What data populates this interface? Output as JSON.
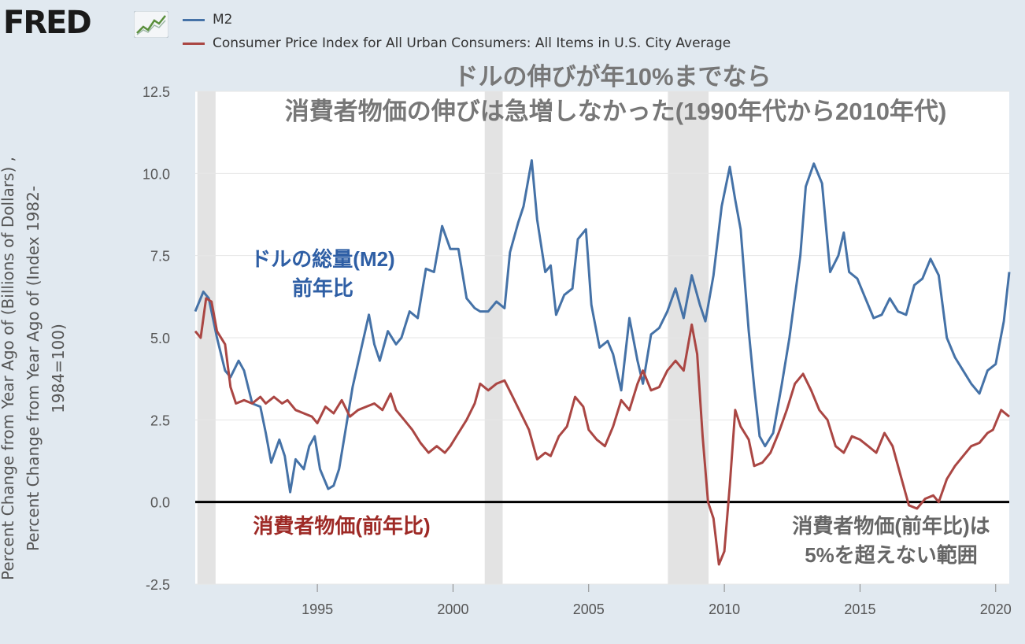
{
  "brand": {
    "logo_text": "FRED",
    "logo_icon": "chart-line-icon"
  },
  "legend": [
    {
      "name": "M2",
      "color": "#4572a7"
    },
    {
      "name": "Consumer Price Index for All Urban Consumers: All Items in U.S. City Average",
      "color": "#aa4643"
    }
  ],
  "y_axis_label": [
    "Percent Change from Year Ago of (Billions of Dollars) ,",
    "Percent Change from Year Ago of (Index 1982-",
    "1984=100)"
  ],
  "annotations": {
    "title_line1": "ドルの伸びが年10%までなら",
    "title_line2": "消費者物価の伸びは急増しなかった(1990年代から2010年代)",
    "m2_line1": "ドルの総量(M2)",
    "m2_line2": "前年比",
    "cpi_label": "消費者物価(前年比)",
    "cpi_note_line1": "消費者物価(前年比)は",
    "cpi_note_line2": "5%を超えない範囲"
  },
  "chart_data": {
    "type": "line",
    "xlim": [
      1990.5,
      2020.5
    ],
    "ylim": [
      -2.5,
      12.5
    ],
    "y_ticks": [
      "12.5",
      "10.0",
      "7.5",
      "5.0",
      "2.5",
      "0.0",
      "-2.5"
    ],
    "x_ticks": [
      "1995",
      "2000",
      "2005",
      "2010",
      "2015",
      "2020"
    ],
    "recessions": [
      [
        1990.58,
        1991.25
      ],
      [
        2001.17,
        2001.83
      ],
      [
        2007.92,
        2009.42
      ]
    ],
    "series": [
      {
        "name": "M2",
        "color": "#4572a7",
        "points": [
          [
            1990.5,
            5.8
          ],
          [
            1990.8,
            6.4
          ],
          [
            1991.0,
            6.2
          ],
          [
            1991.3,
            5.0
          ],
          [
            1991.6,
            4.0
          ],
          [
            1991.8,
            3.8
          ],
          [
            1992.1,
            4.3
          ],
          [
            1992.3,
            4.0
          ],
          [
            1992.6,
            3.0
          ],
          [
            1992.9,
            2.9
          ],
          [
            1993.1,
            2.1
          ],
          [
            1993.3,
            1.2
          ],
          [
            1993.6,
            1.9
          ],
          [
            1993.8,
            1.4
          ],
          [
            1994.0,
            0.3
          ],
          [
            1994.2,
            1.3
          ],
          [
            1994.5,
            1.0
          ],
          [
            1994.7,
            1.7
          ],
          [
            1994.9,
            2.0
          ],
          [
            1995.1,
            1.0
          ],
          [
            1995.4,
            0.4
          ],
          [
            1995.6,
            0.5
          ],
          [
            1995.8,
            1.0
          ],
          [
            1996.0,
            2.0
          ],
          [
            1996.3,
            3.5
          ],
          [
            1996.6,
            4.6
          ],
          [
            1996.9,
            5.7
          ],
          [
            1997.1,
            4.8
          ],
          [
            1997.3,
            4.3
          ],
          [
            1997.6,
            5.2
          ],
          [
            1997.9,
            4.8
          ],
          [
            1998.1,
            5.0
          ],
          [
            1998.4,
            5.8
          ],
          [
            1998.7,
            5.6
          ],
          [
            1999.0,
            7.1
          ],
          [
            1999.3,
            7.0
          ],
          [
            1999.6,
            8.4
          ],
          [
            1999.9,
            7.7
          ],
          [
            2000.2,
            7.7
          ],
          [
            2000.5,
            6.2
          ],
          [
            2000.8,
            5.9
          ],
          [
            2001.0,
            5.8
          ],
          [
            2001.3,
            5.8
          ],
          [
            2001.6,
            6.1
          ],
          [
            2001.9,
            5.9
          ],
          [
            2002.1,
            7.6
          ],
          [
            2002.4,
            8.5
          ],
          [
            2002.6,
            9.0
          ],
          [
            2002.9,
            10.4
          ],
          [
            2003.1,
            8.6
          ],
          [
            2003.4,
            7.0
          ],
          [
            2003.6,
            7.2
          ],
          [
            2003.8,
            5.7
          ],
          [
            2004.1,
            6.3
          ],
          [
            2004.4,
            6.5
          ],
          [
            2004.6,
            8.0
          ],
          [
            2004.9,
            8.3
          ],
          [
            2005.1,
            6.0
          ],
          [
            2005.4,
            4.7
          ],
          [
            2005.7,
            4.9
          ],
          [
            2005.9,
            4.5
          ],
          [
            2006.2,
            3.4
          ],
          [
            2006.5,
            5.6
          ],
          [
            2006.8,
            4.3
          ],
          [
            2007.0,
            3.6
          ],
          [
            2007.3,
            5.1
          ],
          [
            2007.6,
            5.3
          ],
          [
            2007.9,
            5.8
          ],
          [
            2008.2,
            6.5
          ],
          [
            2008.5,
            5.6
          ],
          [
            2008.8,
            6.9
          ],
          [
            2009.1,
            6.0
          ],
          [
            2009.3,
            5.5
          ],
          [
            2009.6,
            6.9
          ],
          [
            2009.9,
            9.0
          ],
          [
            2010.2,
            10.2
          ],
          [
            2010.4,
            9.2
          ],
          [
            2010.6,
            8.3
          ],
          [
            2010.9,
            5.2
          ],
          [
            2011.1,
            3.5
          ],
          [
            2011.3,
            2.0
          ],
          [
            2011.5,
            1.7
          ],
          [
            2011.8,
            2.1
          ],
          [
            2012.1,
            3.5
          ],
          [
            2012.4,
            5.0
          ],
          [
            2012.8,
            7.5
          ],
          [
            2013.0,
            9.6
          ],
          [
            2013.3,
            10.3
          ],
          [
            2013.6,
            9.7
          ],
          [
            2013.9,
            7.0
          ],
          [
            2014.2,
            7.5
          ],
          [
            2014.4,
            8.2
          ],
          [
            2014.6,
            7.0
          ],
          [
            2014.9,
            6.8
          ],
          [
            2015.2,
            6.2
          ],
          [
            2015.5,
            5.6
          ],
          [
            2015.8,
            5.7
          ],
          [
            2016.1,
            6.2
          ],
          [
            2016.4,
            5.8
          ],
          [
            2016.7,
            5.7
          ],
          [
            2017.0,
            6.6
          ],
          [
            2017.3,
            6.8
          ],
          [
            2017.6,
            7.4
          ],
          [
            2017.9,
            6.9
          ],
          [
            2018.2,
            5.0
          ],
          [
            2018.5,
            4.4
          ],
          [
            2018.8,
            4.0
          ],
          [
            2019.1,
            3.6
          ],
          [
            2019.4,
            3.3
          ],
          [
            2019.7,
            4.0
          ],
          [
            2020.0,
            4.2
          ],
          [
            2020.3,
            5.5
          ],
          [
            2020.5,
            7.0
          ]
        ]
      },
      {
        "name": "Consumer Price Index for All Urban Consumers: All Items in U.S. City Average",
        "color": "#aa4643",
        "points": [
          [
            1990.5,
            5.2
          ],
          [
            1990.7,
            5.0
          ],
          [
            1990.9,
            6.2
          ],
          [
            1991.1,
            6.1
          ],
          [
            1991.3,
            5.2
          ],
          [
            1991.6,
            4.8
          ],
          [
            1991.8,
            3.5
          ],
          [
            1992.0,
            3.0
          ],
          [
            1992.3,
            3.1
          ],
          [
            1992.6,
            3.0
          ],
          [
            1992.9,
            3.2
          ],
          [
            1993.1,
            3.0
          ],
          [
            1993.4,
            3.2
          ],
          [
            1993.7,
            3.0
          ],
          [
            1993.9,
            3.1
          ],
          [
            1994.2,
            2.8
          ],
          [
            1994.5,
            2.7
          ],
          [
            1994.8,
            2.6
          ],
          [
            1995.0,
            2.4
          ],
          [
            1995.3,
            2.9
          ],
          [
            1995.6,
            2.7
          ],
          [
            1995.9,
            3.1
          ],
          [
            1996.2,
            2.6
          ],
          [
            1996.5,
            2.8
          ],
          [
            1996.8,
            2.9
          ],
          [
            1997.1,
            3.0
          ],
          [
            1997.4,
            2.8
          ],
          [
            1997.7,
            3.3
          ],
          [
            1997.9,
            2.8
          ],
          [
            1998.2,
            2.5
          ],
          [
            1998.5,
            2.2
          ],
          [
            1998.8,
            1.8
          ],
          [
            1999.1,
            1.5
          ],
          [
            1999.4,
            1.7
          ],
          [
            1999.7,
            1.5
          ],
          [
            1999.9,
            1.7
          ],
          [
            2000.2,
            2.1
          ],
          [
            2000.5,
            2.5
          ],
          [
            2000.8,
            3.0
          ],
          [
            2001.0,
            3.6
          ],
          [
            2001.3,
            3.4
          ],
          [
            2001.6,
            3.6
          ],
          [
            2001.9,
            3.7
          ],
          [
            2002.2,
            3.2
          ],
          [
            2002.5,
            2.7
          ],
          [
            2002.8,
            2.2
          ],
          [
            2003.1,
            1.3
          ],
          [
            2003.4,
            1.5
          ],
          [
            2003.6,
            1.4
          ],
          [
            2003.9,
            2.0
          ],
          [
            2004.2,
            2.3
          ],
          [
            2004.5,
            3.2
          ],
          [
            2004.8,
            2.9
          ],
          [
            2005.0,
            2.2
          ],
          [
            2005.3,
            1.9
          ],
          [
            2005.6,
            1.7
          ],
          [
            2005.9,
            2.3
          ],
          [
            2006.2,
            3.1
          ],
          [
            2006.5,
            2.8
          ],
          [
            2006.8,
            3.6
          ],
          [
            2007.0,
            4.0
          ],
          [
            2007.3,
            3.4
          ],
          [
            2007.6,
            3.5
          ],
          [
            2007.9,
            4.0
          ],
          [
            2008.2,
            4.3
          ],
          [
            2008.5,
            4.0
          ],
          [
            2008.8,
            5.4
          ],
          [
            2009.0,
            4.5
          ],
          [
            2009.2,
            2.0
          ],
          [
            2009.4,
            0.0
          ],
          [
            2009.6,
            -0.5
          ],
          [
            2009.8,
            -1.9
          ],
          [
            2010.0,
            -1.5
          ],
          [
            2010.2,
            0.5
          ],
          [
            2010.4,
            2.8
          ],
          [
            2010.6,
            2.3
          ],
          [
            2010.9,
            1.9
          ],
          [
            2011.1,
            1.1
          ],
          [
            2011.4,
            1.2
          ],
          [
            2011.7,
            1.5
          ],
          [
            2012.0,
            2.1
          ],
          [
            2012.3,
            2.8
          ],
          [
            2012.6,
            3.6
          ],
          [
            2012.9,
            3.9
          ],
          [
            2013.2,
            3.4
          ],
          [
            2013.5,
            2.8
          ],
          [
            2013.8,
            2.5
          ],
          [
            2014.1,
            1.7
          ],
          [
            2014.4,
            1.5
          ],
          [
            2014.7,
            2.0
          ],
          [
            2015.0,
            1.9
          ],
          [
            2015.3,
            1.7
          ],
          [
            2015.6,
            1.5
          ],
          [
            2015.9,
            2.1
          ],
          [
            2016.2,
            1.7
          ],
          [
            2016.5,
            0.8
          ],
          [
            2016.8,
            -0.1
          ],
          [
            2017.1,
            -0.2
          ],
          [
            2017.4,
            0.1
          ],
          [
            2017.7,
            0.2
          ],
          [
            2017.9,
            0.0
          ],
          [
            2018.2,
            0.7
          ],
          [
            2018.5,
            1.1
          ],
          [
            2018.8,
            1.4
          ],
          [
            2019.1,
            1.7
          ],
          [
            2019.4,
            1.8
          ],
          [
            2019.7,
            2.1
          ],
          [
            2019.9,
            2.2
          ],
          [
            2020.2,
            2.8
          ],
          [
            2020.5,
            2.6
          ]
        ]
      }
    ]
  }
}
